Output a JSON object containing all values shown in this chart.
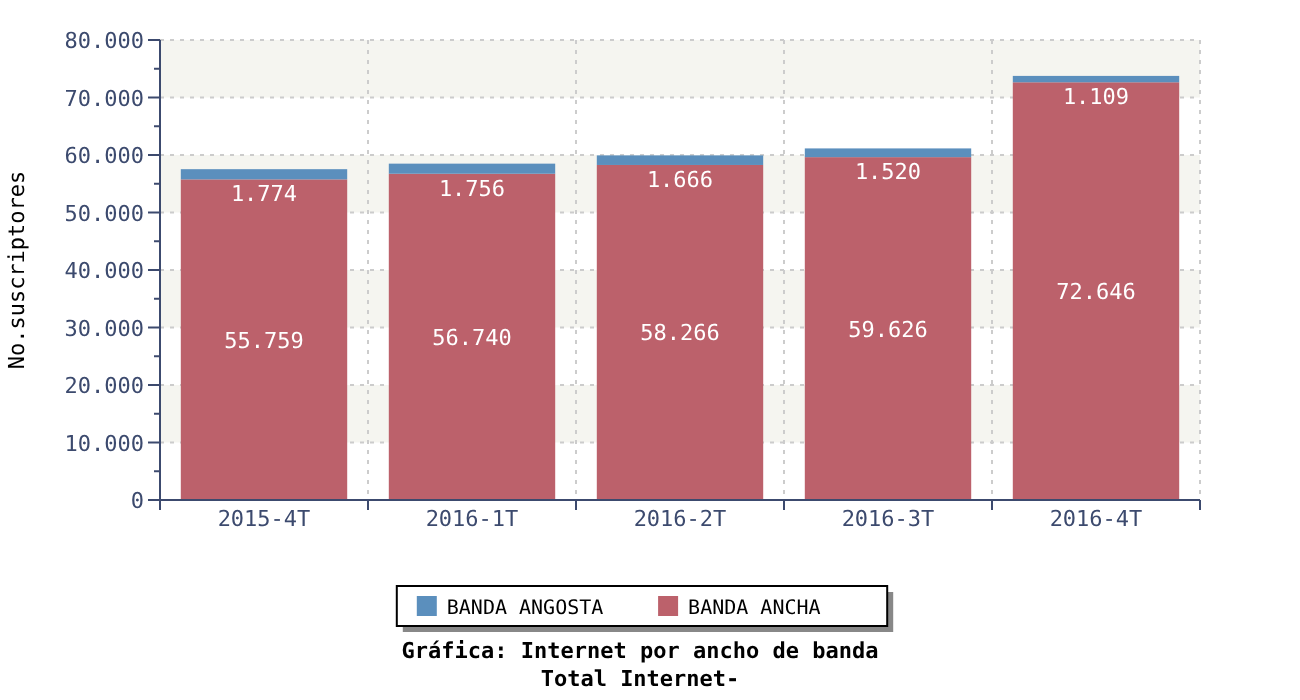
{
  "chart_data": {
    "type": "bar",
    "stacked": true,
    "title": "Gráfica: Internet por ancho de banda",
    "subtitle": "Total Internet-",
    "ylabel": "No.suscriptores",
    "categories": [
      "2015-4T",
      "2016-1T",
      "2016-2T",
      "2016-3T",
      "2016-4T"
    ],
    "series": [
      {
        "name": "BANDA ANCHA",
        "color": "#bc616b",
        "values": [
          55759,
          56740,
          58266,
          59626,
          72646
        ],
        "value_labels": [
          "55.759",
          "56.740",
          "58.266",
          "59.626",
          "72.646"
        ]
      },
      {
        "name": "BANDA ANGOSTA",
        "color": "#5b8fbd",
        "values": [
          1774,
          1756,
          1666,
          1520,
          1109
        ],
        "value_labels": [
          "1.774",
          "1.756",
          "1.666",
          "1.520",
          "1.109"
        ]
      }
    ],
    "ylim": [
      0,
      80000
    ],
    "yticks": [
      {
        "value": 0,
        "label": "0"
      },
      {
        "value": 5000,
        "label": null
      },
      {
        "value": 10000,
        "label": "10.000"
      },
      {
        "value": 15000,
        "label": null
      },
      {
        "value": 20000,
        "label": "20.000"
      },
      {
        "value": 25000,
        "label": null
      },
      {
        "value": 30000,
        "label": "30.000"
      },
      {
        "value": 35000,
        "label": null
      },
      {
        "value": 40000,
        "label": "40.000"
      },
      {
        "value": 45000,
        "label": null
      },
      {
        "value": 50000,
        "label": "50.000"
      },
      {
        "value": 55000,
        "label": null
      },
      {
        "value": 60000,
        "label": "60.000"
      },
      {
        "value": 65000,
        "label": null
      },
      {
        "value": 70000,
        "label": "70.000"
      },
      {
        "value": 75000,
        "label": null
      },
      {
        "value": 80000,
        "label": "80.000"
      }
    ],
    "grid": true,
    "legend": "bottom"
  }
}
